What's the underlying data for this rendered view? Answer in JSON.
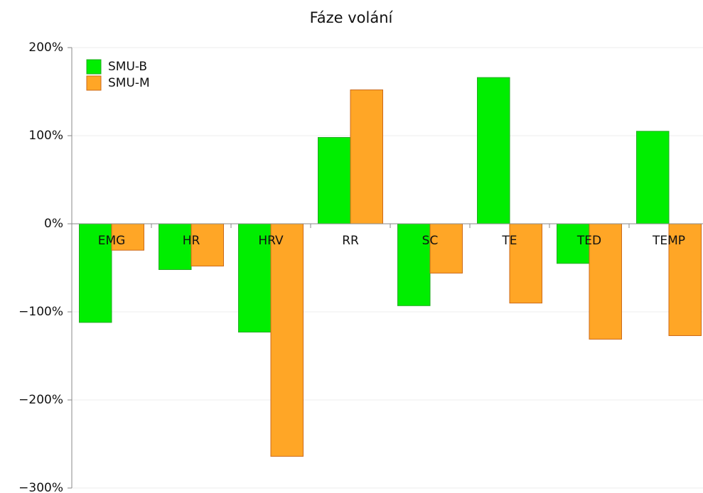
{
  "chart_data": {
    "type": "bar",
    "title": "Fáze volání",
    "categories": [
      "EMG",
      "HR",
      "HRV",
      "RR",
      "SC",
      "TE",
      "TED",
      "TEMP"
    ],
    "series": [
      {
        "name": "SMU-B",
        "color": "#00ee00",
        "values": [
          -112,
          -52,
          -123,
          98,
          -93,
          166,
          -45,
          105
        ]
      },
      {
        "name": "SMU-M",
        "color": "#ffa626",
        "values": [
          -30,
          -48,
          -264,
          152,
          -56,
          -90,
          -131,
          -127
        ]
      }
    ],
    "ylim": [
      -300,
      200
    ],
    "yticks": [
      {
        "value": -300,
        "label": "−300%"
      },
      {
        "value": -200,
        "label": "−200%"
      },
      {
        "value": -100,
        "label": "−100%"
      },
      {
        "value": 0,
        "label": "0%"
      },
      {
        "value": 100,
        "label": "100%"
      },
      {
        "value": 200,
        "label": "200%"
      }
    ],
    "grid": true,
    "legend": "top-left"
  }
}
